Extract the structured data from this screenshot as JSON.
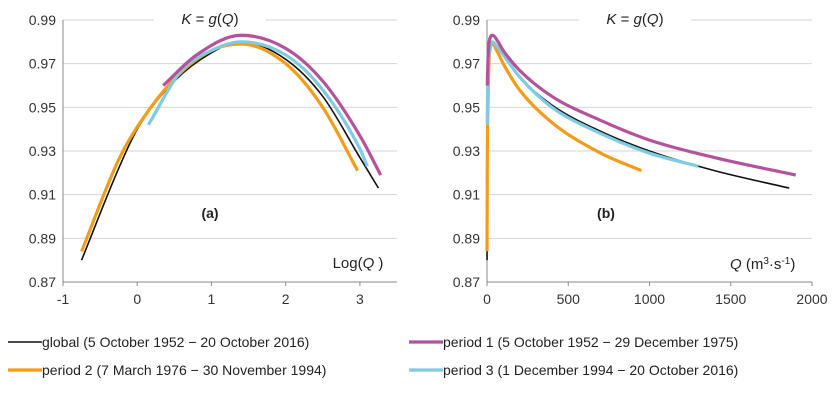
{
  "colors": {
    "global": "#111111",
    "period1": "#b5529d",
    "period2": "#f39c1a",
    "period3": "#7ecbe3",
    "grid": "#d4d4d4"
  },
  "legend": [
    {
      "key": "global",
      "label": "global (5 October 1952 − 20 October 2016)"
    },
    {
      "key": "period1",
      "label": "period 1 (5 October 1952 − 29 December 1975)"
    },
    {
      "key": "period2",
      "label": "period 2 (7 March 1976 − 30 November 1994)"
    },
    {
      "key": "period3",
      "label": "period 3 (1 December 1994 − 20 October 2016)"
    }
  ],
  "chart_data": [
    {
      "type": "line",
      "panel_label": "(a)",
      "title": "K = g(Q)",
      "xlabel": "Log(Q)",
      "xlim": [
        -1,
        3.5
      ],
      "ylim": [
        0.87,
        0.99
      ],
      "xticks": [
        -1,
        0,
        1,
        2,
        3
      ],
      "yticks": [
        0.87,
        0.89,
        0.91,
        0.93,
        0.95,
        0.97,
        0.99
      ],
      "ytick_labels": [
        "0.87",
        "0.89",
        "0.91",
        "0.93",
        "0.95",
        "0.97",
        "0.99"
      ],
      "grid": "horizontal",
      "series": [
        {
          "name": "global",
          "key": "global",
          "x": [
            -0.75,
            -0.25,
            0,
            0.5,
            1.0,
            1.4,
            2.0,
            2.5,
            3.0,
            3.25
          ],
          "y": [
            0.88,
            0.922,
            0.94,
            0.962,
            0.975,
            0.98,
            0.972,
            0.955,
            0.927,
            0.913
          ]
        },
        {
          "name": "period 1",
          "key": "period1",
          "x": [
            0.35,
            0.8,
            1.4,
            2.0,
            2.5,
            3.0,
            3.28
          ],
          "y": [
            0.96,
            0.974,
            0.983,
            0.977,
            0.962,
            0.937,
            0.919
          ]
        },
        {
          "name": "period 2",
          "key": "period2",
          "x": [
            -0.75,
            -0.25,
            0,
            0.5,
            1.0,
            1.4,
            2.0,
            2.5,
            2.97
          ],
          "y": [
            0.884,
            0.926,
            0.941,
            0.963,
            0.976,
            0.979,
            0.97,
            0.95,
            0.921
          ]
        },
        {
          "name": "period 3",
          "key": "period3",
          "x": [
            0.15,
            0.6,
            1.0,
            1.4,
            2.0,
            2.5,
            3.0,
            3.1
          ],
          "y": [
            0.942,
            0.967,
            0.976,
            0.98,
            0.974,
            0.958,
            0.931,
            0.923
          ]
        }
      ]
    },
    {
      "type": "line",
      "panel_label": "(b)",
      "title": "K = g(Q)",
      "xlabel": "Q (m3·s-1)",
      "xlim": [
        0,
        2000
      ],
      "ylim": [
        0.87,
        0.99
      ],
      "xticks": [
        0,
        500,
        1000,
        1500,
        2000
      ],
      "yticks": [
        0.87,
        0.89,
        0.91,
        0.93,
        0.95,
        0.97,
        0.99
      ],
      "ytick_labels": [
        "0.87",
        "0.89",
        "0.91",
        "0.93",
        "0.95",
        "0.97",
        "0.99"
      ],
      "grid": "horizontal",
      "series": [
        {
          "name": "global",
          "key": "global",
          "x": [
            0.2,
            2,
            6,
            12,
            20,
            35,
            60,
            100,
            200,
            400,
            700,
            1000,
            1400,
            1860
          ],
          "y": [
            0.88,
            0.922,
            0.95,
            0.97,
            0.978,
            0.98,
            0.978,
            0.974,
            0.964,
            0.951,
            0.939,
            0.93,
            0.921,
            0.913
          ]
        },
        {
          "name": "period 1",
          "key": "period1",
          "x": [
            2,
            6,
            12,
            20,
            35,
            60,
            100,
            200,
            400,
            700,
            1000,
            1400,
            1900
          ],
          "y": [
            0.96,
            0.972,
            0.979,
            0.982,
            0.983,
            0.981,
            0.976,
            0.967,
            0.955,
            0.944,
            0.935,
            0.927,
            0.919
          ]
        },
        {
          "name": "period 2",
          "key": "period2",
          "x": [
            0.2,
            2,
            6,
            12,
            20,
            35,
            60,
            100,
            200,
            400,
            700,
            950
          ],
          "y": [
            0.884,
            0.926,
            0.951,
            0.97,
            0.977,
            0.979,
            0.976,
            0.97,
            0.958,
            0.943,
            0.929,
            0.921
          ]
        },
        {
          "name": "period 3",
          "key": "period3",
          "x": [
            1.4,
            4,
            10,
            20,
            35,
            60,
            100,
            200,
            400,
            700,
            1000,
            1300
          ],
          "y": [
            0.942,
            0.96,
            0.972,
            0.978,
            0.98,
            0.978,
            0.974,
            0.964,
            0.95,
            0.938,
            0.929,
            0.923
          ]
        }
      ]
    }
  ]
}
